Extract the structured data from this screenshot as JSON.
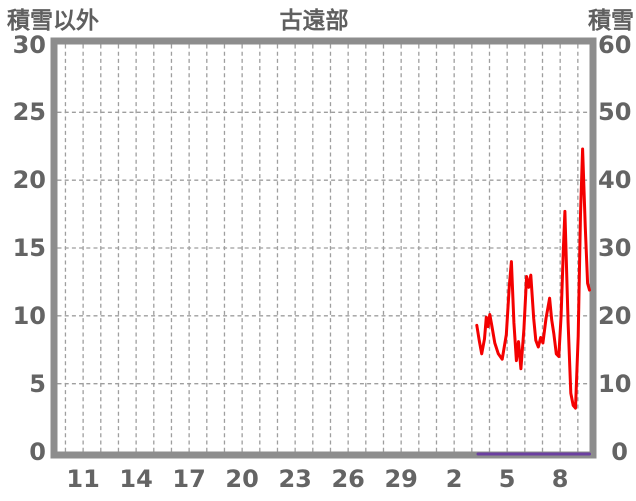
{
  "header": {
    "left_axis_title": "積雪以外",
    "station_title": "古遠部",
    "right_axis_title": "積雪"
  },
  "colors": {
    "frame": "#8d8d8d",
    "grid": "#9e9e9e",
    "text": "#646464",
    "series_red": "#f40000",
    "series_purple": "#6b3fa0"
  },
  "chart_data": {
    "type": "line",
    "title": "古遠部",
    "grid": true,
    "legend_position": "none",
    "left_axis": {
      "label": "積雪以外",
      "min": 0,
      "max": 30,
      "ticks": [
        0,
        5,
        10,
        15,
        20,
        25,
        30
      ]
    },
    "right_axis": {
      "label": "積雪",
      "min": 0,
      "max": 60,
      "ticks": [
        0,
        10,
        20,
        30,
        40,
        50,
        60
      ]
    },
    "x_axis": {
      "day_start": 9.55,
      "day_end": 39.66,
      "gridline_every_days": 1,
      "ticks": [
        {
          "day": 11,
          "label": "11"
        },
        {
          "day": 14,
          "label": "14"
        },
        {
          "day": 17,
          "label": "17"
        },
        {
          "day": 20,
          "label": "20"
        },
        {
          "day": 23,
          "label": "23"
        },
        {
          "day": 26,
          "label": "26"
        },
        {
          "day": 29,
          "label": "29"
        },
        {
          "day": 32,
          "label": "2"
        },
        {
          "day": 35,
          "label": "5"
        },
        {
          "day": 38,
          "label": "8"
        }
      ]
    },
    "series": [
      {
        "name": "積雪以外",
        "axis": "left",
        "color": "#f40000",
        "width": 3,
        "points": [
          [
            33.28,
            9.3
          ],
          [
            33.42,
            8.2
          ],
          [
            33.56,
            7.2
          ],
          [
            33.72,
            8.3
          ],
          [
            33.82,
            9.9
          ],
          [
            33.92,
            9.2
          ],
          [
            34.02,
            10.1
          ],
          [
            34.14,
            9.2
          ],
          [
            34.3,
            8.0
          ],
          [
            34.5,
            7.2
          ],
          [
            34.72,
            6.8
          ],
          [
            34.95,
            8.6
          ],
          [
            35.12,
            12.2
          ],
          [
            35.24,
            14.0
          ],
          [
            35.38,
            9.5
          ],
          [
            35.52,
            6.7
          ],
          [
            35.64,
            8.1
          ],
          [
            35.78,
            6.1
          ],
          [
            35.95,
            9.0
          ],
          [
            36.1,
            12.9
          ],
          [
            36.22,
            12.1
          ],
          [
            36.34,
            13.0
          ],
          [
            36.5,
            9.8
          ],
          [
            36.62,
            8.2
          ],
          [
            36.76,
            7.7
          ],
          [
            36.9,
            8.4
          ],
          [
            37.02,
            8.0
          ],
          [
            37.2,
            9.8
          ],
          [
            37.4,
            11.3
          ],
          [
            37.52,
            9.7
          ],
          [
            37.64,
            8.7
          ],
          [
            37.78,
            7.2
          ],
          [
            37.92,
            7.0
          ],
          [
            38.05,
            10.0
          ],
          [
            38.18,
            15.0
          ],
          [
            38.27,
            17.7
          ],
          [
            38.45,
            9.5
          ],
          [
            38.6,
            4.3
          ],
          [
            38.74,
            3.4
          ],
          [
            38.87,
            3.2
          ],
          [
            39.02,
            8.5
          ],
          [
            39.15,
            17.5
          ],
          [
            39.27,
            22.3
          ],
          [
            39.42,
            16.5
          ],
          [
            39.55,
            12.4
          ],
          [
            39.66,
            11.9
          ]
        ]
      },
      {
        "name": "積雪",
        "axis": "right",
        "color": "#6b3fa0",
        "width": 3,
        "points": [
          [
            33.35,
            0
          ],
          [
            39.66,
            0
          ]
        ]
      }
    ]
  }
}
